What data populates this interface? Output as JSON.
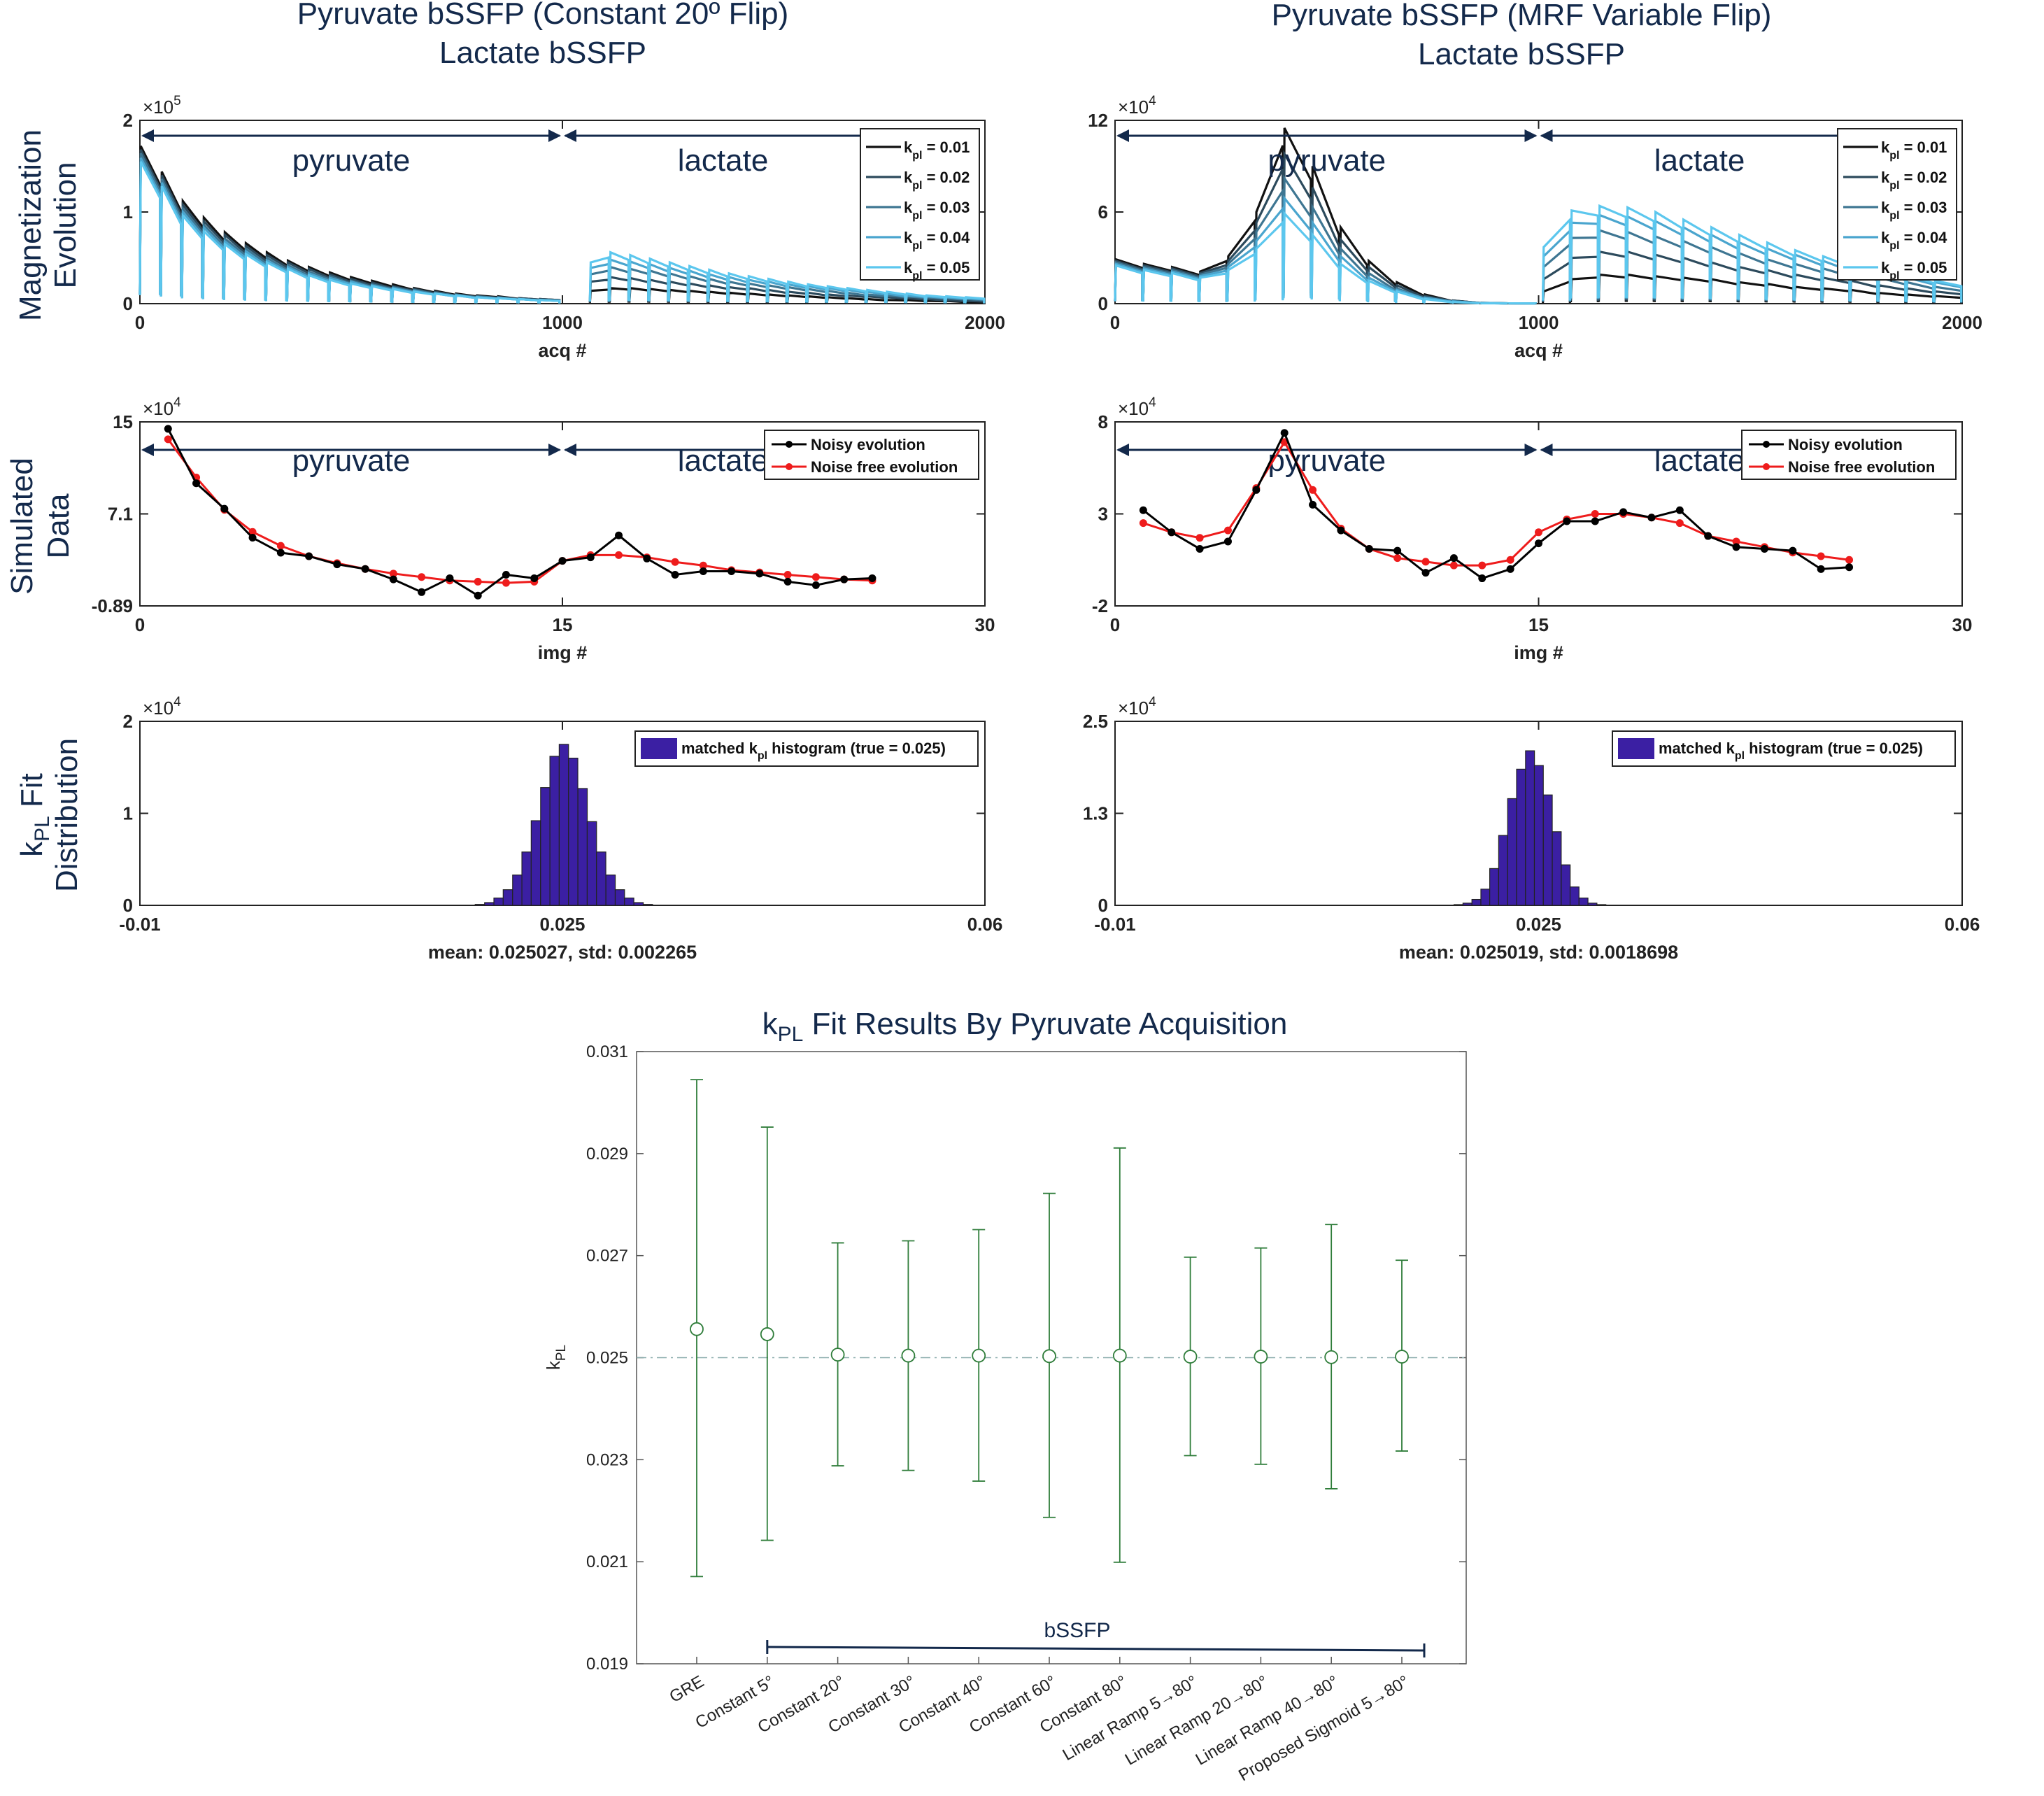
{
  "colors": {
    "navy": "#13294b",
    "kpl_colors": [
      "#111111",
      "#2c4a5c",
      "#3e7692",
      "#4aa5ce",
      "#5cc7ee"
    ],
    "noisy": "#000000",
    "noise_free": "#ee1c1c",
    "hist": "#3b1fa3",
    "errorbar": "#2f7d3a"
  },
  "columns": [
    {
      "title_line1": "Pyruvate bSSFP (Constant 20º Flip)",
      "title_line2": "Lactate bSSFP"
    },
    {
      "title_line1": "Pyruvate bSSFP (MRF Variable Flip)",
      "title_line2": "Lactate bSSFP"
    }
  ],
  "row_labels": {
    "row1": [
      "Magnetization",
      "Evolution"
    ],
    "row2": [
      "Simulated",
      "Data"
    ],
    "row3_k": "k",
    "row3_sub": "PL",
    "row3_rest": " Fit",
    "row3_line2": "Distribution"
  },
  "chart_data": [
    {
      "id": "mag-left",
      "type": "line",
      "xlabel": "acq #",
      "xlim": [
        0,
        2000
      ],
      "xticks": [
        "0",
        "1000",
        "2000"
      ],
      "ylim": [
        0,
        2
      ],
      "yticks": [
        "0",
        "1",
        "2"
      ],
      "exponent": "×10",
      "exponent_power": "5",
      "annotations": [
        "pyruvate",
        "lactate"
      ],
      "legend": [
        "k_pl = 0.01",
        "k_pl = 0.02",
        "k_pl = 0.03",
        "k_pl = 0.04",
        "k_pl = 0.05"
      ],
      "legend_k": "k",
      "legend_sub": "pl",
      "legend_vals": [
        " = 0.01",
        " = 0.02",
        " = 0.03",
        " = 0.04",
        " = 0.05"
      ],
      "series": [
        {
          "name": "k_pl = 0.01",
          "pyr_peaks": [
            1.72,
            1.44,
            1.12,
            0.94,
            0.78,
            0.66,
            0.56,
            0.47,
            0.4,
            0.34,
            0.29,
            0.25,
            0.21,
            0.17,
            0.14,
            0.11,
            0.09,
            0.08,
            0.06,
            0.05
          ],
          "lac_peaks": [
            0.14,
            0.17,
            0.17,
            0.16,
            0.15,
            0.14,
            0.13,
            0.12,
            0.11,
            0.1,
            0.09,
            0.08,
            0.07,
            0.06,
            0.05,
            0.04,
            0.04,
            0.03,
            0.03,
            0.02
          ]
        },
        {
          "name": "k_pl = 0.02",
          "pyr_peaks": [
            1.68,
            1.4,
            1.08,
            0.9,
            0.75,
            0.63,
            0.53,
            0.45,
            0.38,
            0.32,
            0.27,
            0.23,
            0.19,
            0.16,
            0.13,
            0.1,
            0.08,
            0.07,
            0.06,
            0.05
          ],
          "lac_peaks": [
            0.24,
            0.29,
            0.28,
            0.26,
            0.24,
            0.22,
            0.2,
            0.18,
            0.17,
            0.15,
            0.13,
            0.12,
            0.1,
            0.09,
            0.08,
            0.07,
            0.06,
            0.05,
            0.04,
            0.03
          ]
        },
        {
          "name": "k_pl = 0.03",
          "pyr_peaks": [
            1.64,
            1.36,
            1.04,
            0.86,
            0.71,
            0.6,
            0.5,
            0.42,
            0.35,
            0.3,
            0.25,
            0.21,
            0.18,
            0.15,
            0.12,
            0.1,
            0.08,
            0.07,
            0.05,
            0.04
          ],
          "lac_peaks": [
            0.32,
            0.4,
            0.38,
            0.36,
            0.33,
            0.3,
            0.27,
            0.24,
            0.22,
            0.2,
            0.18,
            0.16,
            0.14,
            0.12,
            0.1,
            0.09,
            0.08,
            0.07,
            0.06,
            0.05
          ]
        },
        {
          "name": "k_pl = 0.04",
          "pyr_peaks": [
            1.59,
            1.32,
            1.0,
            0.83,
            0.68,
            0.57,
            0.47,
            0.4,
            0.33,
            0.28,
            0.24,
            0.2,
            0.17,
            0.14,
            0.11,
            0.09,
            0.07,
            0.06,
            0.05,
            0.04
          ],
          "lac_peaks": [
            0.39,
            0.48,
            0.46,
            0.43,
            0.39,
            0.36,
            0.32,
            0.29,
            0.26,
            0.24,
            0.21,
            0.19,
            0.17,
            0.15,
            0.13,
            0.11,
            0.09,
            0.08,
            0.07,
            0.06
          ]
        },
        {
          "name": "k_pl = 0.05",
          "pyr_peaks": [
            1.55,
            1.28,
            0.96,
            0.79,
            0.65,
            0.54,
            0.45,
            0.38,
            0.31,
            0.26,
            0.22,
            0.19,
            0.16,
            0.13,
            0.11,
            0.09,
            0.07,
            0.06,
            0.05,
            0.04
          ],
          "lac_peaks": [
            0.45,
            0.56,
            0.53,
            0.49,
            0.45,
            0.41,
            0.37,
            0.33,
            0.3,
            0.27,
            0.24,
            0.21,
            0.19,
            0.17,
            0.15,
            0.13,
            0.11,
            0.09,
            0.08,
            0.07
          ]
        }
      ]
    },
    {
      "id": "mag-right",
      "type": "line",
      "xlabel": "acq #",
      "xlim": [
        0,
        2000
      ],
      "xticks": [
        "0",
        "1000",
        "2000"
      ],
      "ylim": [
        0,
        12
      ],
      "yticks": [
        "0",
        "6",
        "12"
      ],
      "exponent": "×10",
      "exponent_power": "4",
      "annotations": [
        "pyruvate",
        "lactate"
      ],
      "legend": [
        "k_pl = 0.01",
        "k_pl = 0.02",
        "k_pl = 0.03",
        "k_pl = 0.04",
        "k_pl = 0.05"
      ],
      "legend_k": "k",
      "legend_sub": "pl",
      "legend_vals": [
        " = 0.01",
        " = 0.02",
        " = 0.03",
        " = 0.04",
        " = 0.05"
      ],
      "series": [
        {
          "name": "k_pl = 0.01",
          "pyr_peaks": [
            2.9,
            2.6,
            2.4,
            2.1,
            3.1,
            6.0,
            11.5,
            9.0,
            5.0,
            2.8,
            1.4,
            0.6,
            0.2,
            0.05,
            0.02
          ],
          "lac_peaks": [
            0.8,
            1.6,
            1.9,
            1.9,
            1.8,
            1.7,
            1.6,
            1.4,
            1.3,
            1.1,
            1.0,
            0.9,
            0.7,
            0.6,
            0.5
          ]
        },
        {
          "name": "k_pl = 0.02",
          "pyr_peaks": [
            2.8,
            2.5,
            2.3,
            2.0,
            2.8,
            5.3,
            9.8,
            7.6,
            4.2,
            2.4,
            1.2,
            0.5,
            0.2,
            0.05,
            0.02
          ],
          "lac_peaks": [
            1.6,
            3.0,
            3.4,
            3.4,
            3.2,
            3.0,
            2.7,
            2.4,
            2.2,
            1.9,
            1.7,
            1.5,
            1.2,
            1.0,
            0.8
          ]
        },
        {
          "name": "k_pl = 0.03",
          "pyr_peaks": [
            2.7,
            2.4,
            2.2,
            1.9,
            2.6,
            4.7,
            8.2,
            6.3,
            3.6,
            2.0,
            1.0,
            0.4,
            0.15,
            0.04,
            0.02
          ],
          "lac_peaks": [
            2.4,
            4.3,
            4.8,
            4.7,
            4.4,
            4.1,
            3.7,
            3.3,
            2.9,
            2.6,
            2.3,
            2.0,
            1.7,
            1.4,
            1.1
          ]
        },
        {
          "name": "k_pl = 0.04",
          "pyr_peaks": [
            2.6,
            2.3,
            2.1,
            1.8,
            2.4,
            4.1,
            6.9,
            5.3,
            3.1,
            1.7,
            0.9,
            0.4,
            0.15,
            0.04,
            0.02
          ],
          "lac_peaks": [
            3.1,
            5.3,
            5.8,
            5.7,
            5.4,
            5.0,
            4.5,
            4.0,
            3.6,
            3.2,
            2.8,
            2.4,
            2.1,
            1.7,
            1.4
          ]
        },
        {
          "name": "k_pl = 0.05",
          "pyr_peaks": [
            2.5,
            2.2,
            2.0,
            1.7,
            2.2,
            3.6,
            5.9,
            4.5,
            2.6,
            1.5,
            0.8,
            0.3,
            0.1,
            0.03,
            0.02
          ],
          "lac_peaks": [
            3.7,
            6.1,
            6.4,
            6.3,
            6.0,
            5.5,
            5.0,
            4.5,
            4.0,
            3.5,
            3.1,
            2.7,
            2.3,
            1.9,
            1.5
          ]
        }
      ]
    },
    {
      "id": "sim-left",
      "type": "line",
      "xlabel": "img #",
      "xlim": [
        0,
        30
      ],
      "xticks": [
        "0",
        "15",
        "30"
      ],
      "ylim": [
        -0.89,
        15
      ],
      "yticks": [
        "-0.89",
        "7.1",
        "15"
      ],
      "exponent": "×10",
      "exponent_power": "4",
      "annotations": [
        "pyruvate",
        "lactate"
      ],
      "legend": [
        "Noisy evolution",
        "Noise free evolution"
      ],
      "x": [
        1,
        2,
        3,
        4,
        5,
        6,
        7,
        8,
        9,
        10,
        11,
        12,
        13,
        14,
        15,
        16,
        17,
        18,
        19,
        20,
        21,
        22,
        23,
        24,
        25,
        26
      ],
      "series": [
        {
          "name": "Noisy evolution",
          "values": [
            14.4,
            9.7,
            7.5,
            5.0,
            3.7,
            3.4,
            2.7,
            2.3,
            1.4,
            0.3,
            1.5,
            0.0,
            1.8,
            1.5,
            3.0,
            3.3,
            5.2,
            3.2,
            1.8,
            2.1,
            2.1,
            1.9,
            1.2,
            0.9,
            1.4,
            1.5
          ]
        },
        {
          "name": "Noise free evolution",
          "values": [
            13.5,
            10.2,
            7.4,
            5.5,
            4.3,
            3.4,
            2.8,
            2.3,
            1.9,
            1.6,
            1.3,
            1.2,
            1.1,
            1.2,
            3.0,
            3.5,
            3.5,
            3.3,
            2.9,
            2.6,
            2.2,
            2.0,
            1.8,
            1.6,
            1.4,
            1.3
          ]
        }
      ]
    },
    {
      "id": "sim-right",
      "type": "line",
      "xlabel": "img #",
      "xlim": [
        0,
        30
      ],
      "xticks": [
        "0",
        "15",
        "30"
      ],
      "ylim": [
        -2,
        8
      ],
      "yticks": [
        "-2",
        "3",
        "8"
      ],
      "exponent": "×10",
      "exponent_power": "4",
      "annotations": [
        "pyruvate",
        "lactate"
      ],
      "legend": [
        "Noisy evolution",
        "Noise free evolution"
      ],
      "x": [
        1,
        2,
        3,
        4,
        5,
        6,
        7,
        8,
        9,
        10,
        11,
        12,
        13,
        14,
        15,
        16,
        17,
        18,
        19,
        20,
        21,
        22,
        23,
        24,
        25,
        26
      ],
      "series": [
        {
          "name": "Noisy evolution",
          "values": [
            3.2,
            2.0,
            1.1,
            1.5,
            4.3,
            7.4,
            3.5,
            2.1,
            1.1,
            1.0,
            -0.2,
            0.6,
            -0.5,
            0.0,
            1.4,
            2.6,
            2.6,
            3.1,
            2.8,
            3.2,
            1.8,
            1.2,
            1.1,
            1.0,
            0.0,
            0.1
          ]
        },
        {
          "name": "Noise free evolution",
          "values": [
            2.5,
            2.0,
            1.7,
            2.1,
            4.4,
            6.9,
            4.3,
            2.2,
            1.1,
            0.6,
            0.4,
            0.2,
            0.2,
            0.5,
            2.0,
            2.7,
            3.0,
            3.0,
            2.8,
            2.5,
            1.8,
            1.5,
            1.2,
            0.9,
            0.7,
            0.5
          ]
        }
      ]
    },
    {
      "id": "hist-left",
      "type": "bar",
      "xlim": [
        -0.01,
        0.06
      ],
      "xticks": [
        "-0.01",
        "0.025",
        "0.06"
      ],
      "ylim": [
        0,
        2
      ],
      "yticks": [
        "0",
        "1",
        "2"
      ],
      "exponent": "×10",
      "exponent_power": "4",
      "xlabel": "mean: 0.025027, std: 0.002265",
      "legend_pre": "matched k",
      "legend_sub": "pl",
      "legend_post": " histogram (true = 0.025)",
      "bin_width": 0.000773,
      "bin_centers": [
        0.01739,
        0.01816,
        0.01894,
        0.01971,
        0.02048,
        0.02126,
        0.02203,
        0.0228,
        0.02358,
        0.02435,
        0.02512,
        0.02589,
        0.02667,
        0.02744,
        0.02821,
        0.02899,
        0.02976,
        0.03053,
        0.03131,
        0.03208
      ],
      "values": [
        0.003,
        0.01,
        0.03,
        0.08,
        0.17,
        0.33,
        0.58,
        0.92,
        1.28,
        1.62,
        1.75,
        1.6,
        1.27,
        0.91,
        0.58,
        0.33,
        0.17,
        0.08,
        0.03,
        0.01
      ]
    },
    {
      "id": "hist-right",
      "type": "bar",
      "xlim": [
        -0.01,
        0.06
      ],
      "xticks": [
        "-0.01",
        "0.025",
        "0.06"
      ],
      "ylim": [
        0,
        2.5
      ],
      "yticks": [
        "0",
        "1.3",
        "2.5"
      ],
      "exponent": "×10",
      "exponent_power": "4",
      "xlabel": "mean: 0.025019, std: 0.0018698",
      "legend_pre": "matched k",
      "legend_sub": "pl",
      "legend_post": " histogram (true = 0.025)",
      "bin_width": 0.000738,
      "bin_centers": [
        0.01838,
        0.01912,
        0.01986,
        0.0206,
        0.02133,
        0.02207,
        0.02281,
        0.02355,
        0.02429,
        0.02502,
        0.02576,
        0.0265,
        0.02724,
        0.02797,
        0.02871,
        0.02945,
        0.03019
      ],
      "values": [
        0.01,
        0.03,
        0.08,
        0.22,
        0.5,
        0.95,
        1.45,
        1.85,
        2.1,
        1.9,
        1.5,
        1.0,
        0.55,
        0.25,
        0.1,
        0.03,
        0.01
      ]
    },
    {
      "id": "errorbar",
      "type": "scatter",
      "title_pre": "k",
      "title_sub": "PL",
      "title_post": " Fit Results By Pyruvate Acquisition",
      "ylabel_main": "k",
      "ylabel_sub": "PL",
      "ylim": [
        0.019,
        0.031
      ],
      "yticks": [
        "0.019",
        "0.021",
        "0.023",
        "0.025",
        "0.027",
        "0.029",
        "0.031"
      ],
      "categories": [
        "GRE",
        "Constant 5°",
        "Constant 20°",
        "Constant 30°",
        "Constant 40°",
        "Constant 60°",
        "Constant 80°",
        "Linear Ramp 5→80°",
        "Linear Ramp 20→80°",
        "Linear Ramp 40→80°",
        "Proposed Sigmoid 5→80°"
      ],
      "means": [
        0.02556,
        0.02546,
        0.02506,
        0.02504,
        0.02504,
        0.02503,
        0.02504,
        0.02502,
        0.02502,
        0.02501,
        0.02502
      ],
      "upper": [
        0.03045,
        0.02952,
        0.02725,
        0.02729,
        0.02751,
        0.02822,
        0.02911,
        0.02697,
        0.02715,
        0.02761,
        0.02691
      ],
      "lower": [
        0.02071,
        0.02142,
        0.02288,
        0.02279,
        0.02258,
        0.02187,
        0.02099,
        0.02308,
        0.02291,
        0.02243,
        0.02317
      ],
      "reference_line": 0.025,
      "bracket_label": "bSSFP"
    }
  ]
}
